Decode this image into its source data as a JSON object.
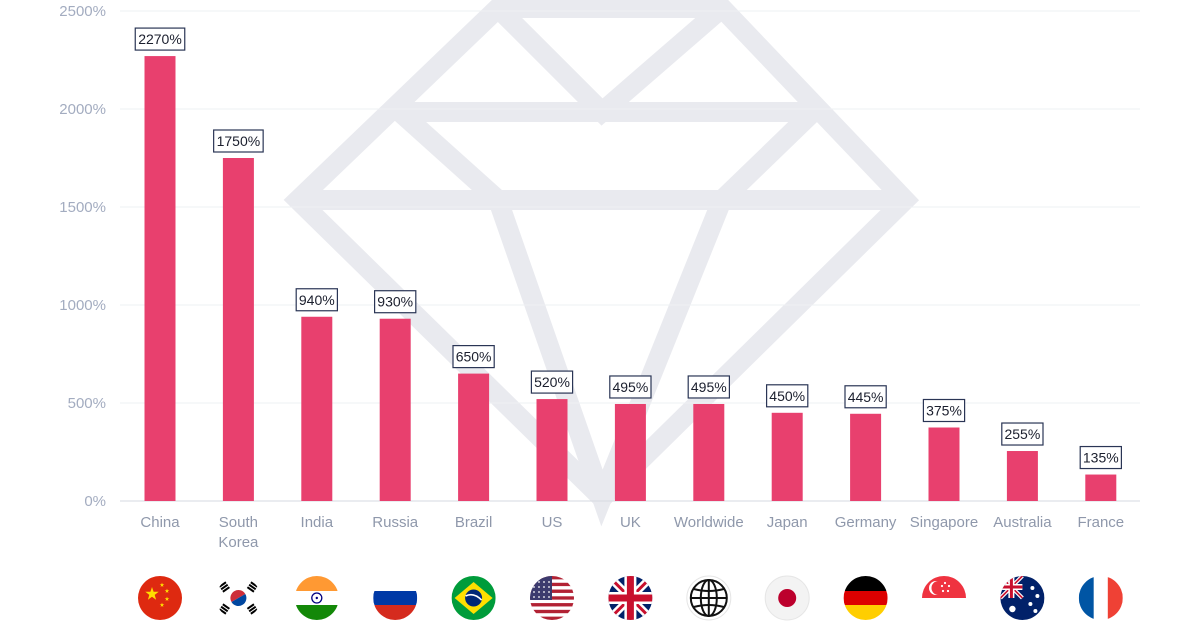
{
  "chart_data": {
    "type": "bar",
    "categories": [
      "China",
      "South\nKorea",
      "India",
      "Russia",
      "Brazil",
      "US",
      "UK",
      "Worldwide",
      "Japan",
      "Germany",
      "Singapore",
      "Australia",
      "France"
    ],
    "values": [
      2270,
      1750,
      940,
      930,
      650,
      520,
      495,
      495,
      450,
      445,
      375,
      255,
      135
    ],
    "value_labels": [
      "2270%",
      "1750%",
      "940%",
      "930%",
      "650%",
      "520%",
      "495%",
      "495%",
      "450%",
      "445%",
      "375%",
      "255%",
      "135%"
    ],
    "yticks": [
      0,
      500,
      1000,
      1500,
      2000,
      2500
    ],
    "ytick_labels": [
      "0%",
      "500%",
      "1000%",
      "1500%",
      "2000%",
      "2500%"
    ],
    "ylim": [
      0,
      2500
    ],
    "title": "",
    "xlabel": "",
    "ylabel": "",
    "grid": true,
    "bar_color": "#e8406e",
    "flag_icons": [
      "china-flag-icon",
      "south-korea-flag-icon",
      "india-flag-icon",
      "russia-flag-icon",
      "brazil-flag-icon",
      "us-flag-icon",
      "uk-flag-icon",
      "globe-icon",
      "japan-flag-icon",
      "germany-flag-icon",
      "singapore-flag-icon",
      "australia-flag-icon",
      "france-flag-icon"
    ]
  }
}
